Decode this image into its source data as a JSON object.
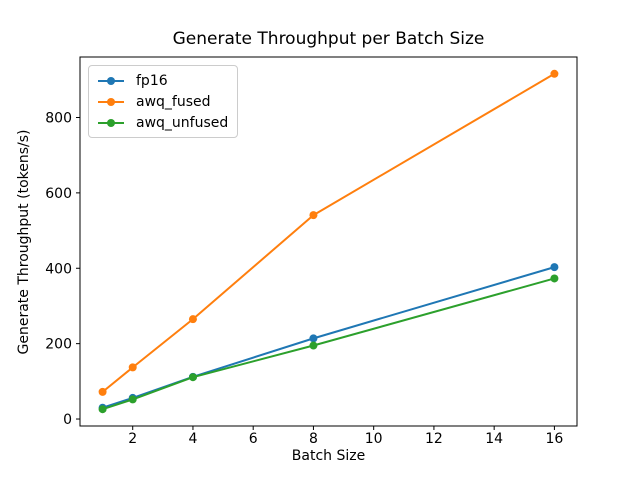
{
  "chart_data": {
    "type": "line",
    "title": "Generate Throughput per Batch Size",
    "xlabel": "Batch Size",
    "ylabel": "Generate Throughput (tokens/s)",
    "x": [
      1,
      2,
      4,
      8,
      16
    ],
    "series": [
      {
        "name": "fp16",
        "color": "#1f77b4",
        "values": [
          30,
          56,
          112,
          214,
          403
        ]
      },
      {
        "name": "awq_fused",
        "color": "#ff7f0e",
        "values": [
          72,
          137,
          265,
          541,
          916
        ]
      },
      {
        "name": "awq_unfused",
        "color": "#2ca02c",
        "values": [
          26,
          52,
          111,
          195,
          373
        ]
      }
    ],
    "x_ticks": [
      2,
      4,
      6,
      8,
      10,
      12,
      14,
      16
    ],
    "y_ticks": [
      0,
      200,
      400,
      600,
      800
    ],
    "xlim": [
      0.25,
      16.75
    ],
    "ylim": [
      -18.5,
      960.5
    ],
    "grid": false,
    "legend_position": "upper left",
    "marker": "o",
    "axis_color": "#000000",
    "background_color": "#ffffff"
  }
}
